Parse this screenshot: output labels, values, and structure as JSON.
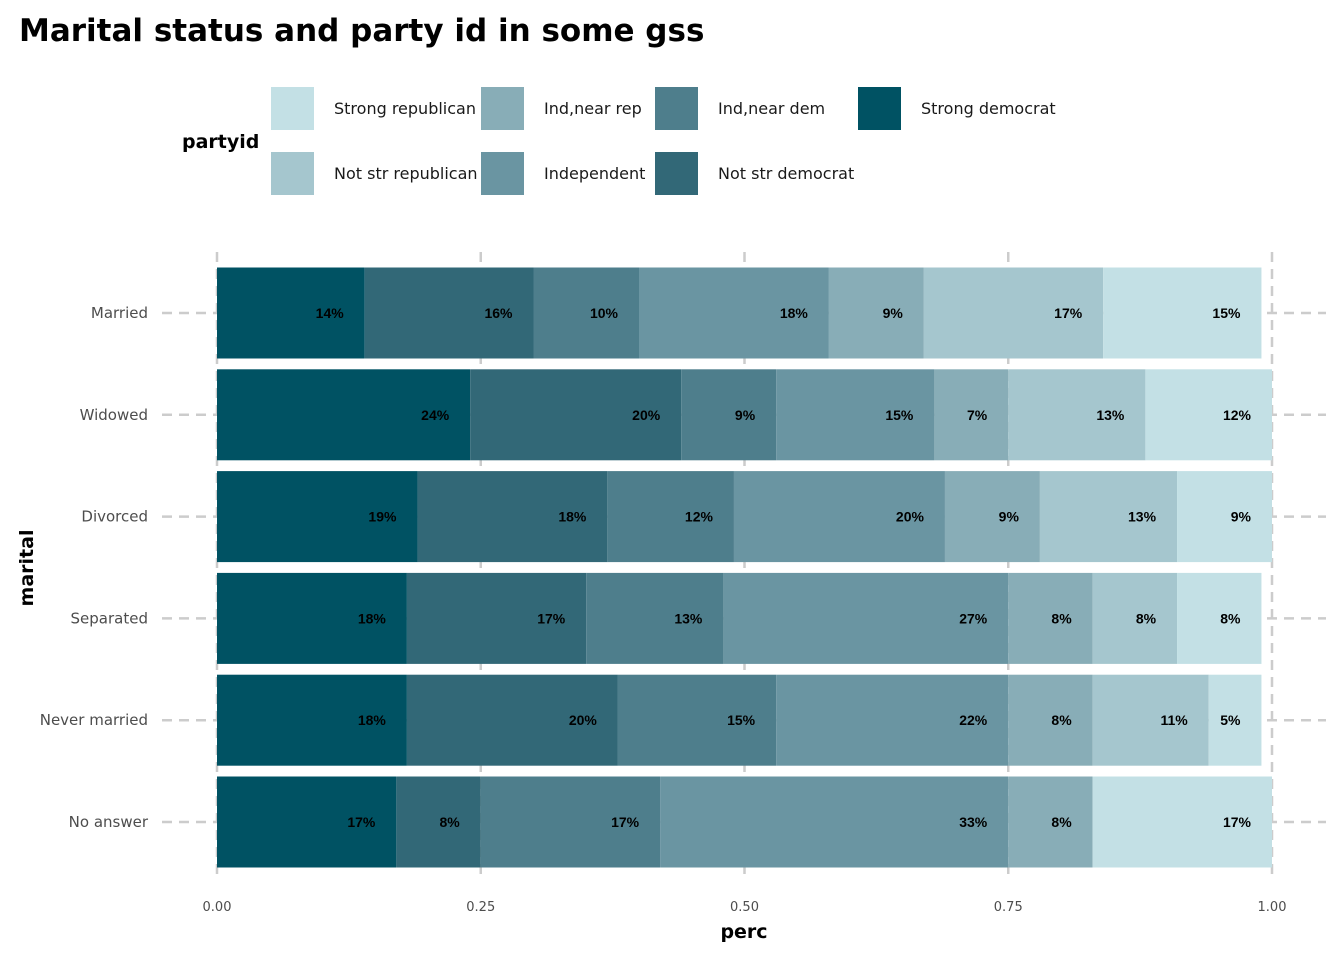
{
  "chart_data": {
    "type": "bar",
    "orientation": "horizontal",
    "stacked": true,
    "title": "Marital status and party id in some gss",
    "xlabel": "perc",
    "ylabel": "marital",
    "xlim": [
      0,
      1
    ],
    "x_ticks": [
      "0.00",
      "0.25",
      "0.50",
      "0.75",
      "1.00"
    ],
    "grid": true,
    "legend": {
      "title": "partyid",
      "placement": "top",
      "entries": [
        {
          "name": "Strong republican",
          "color": "#c3e0e5"
        },
        {
          "name": "Not str republican",
          "color": "#a5c6ce"
        },
        {
          "name": "Ind,near rep",
          "color": "#88adb7"
        },
        {
          "name": "Independent",
          "color": "#6a95a2"
        },
        {
          "name": "Ind,near dem",
          "color": "#4e7e8c"
        },
        {
          "name": "Not str democrat",
          "color": "#326877"
        },
        {
          "name": "Strong democrat",
          "color": "#005263"
        }
      ]
    },
    "categories": [
      "Married",
      "Widowed",
      "Divorced",
      "Separated",
      "Never married",
      "No answer"
    ],
    "series": [
      {
        "name": "Strong democrat",
        "color": "#005263",
        "values": [
          0.14,
          0.24,
          0.19,
          0.18,
          0.18,
          0.17
        ],
        "labels": [
          "14%",
          "24%",
          "19%",
          "18%",
          "18%",
          "17%"
        ]
      },
      {
        "name": "Not str democrat",
        "color": "#326877",
        "values": [
          0.16,
          0.2,
          0.18,
          0.17,
          0.2,
          0.08
        ],
        "labels": [
          "16%",
          "20%",
          "18%",
          "17%",
          "20%",
          "8%"
        ]
      },
      {
        "name": "Ind,near dem",
        "color": "#4e7e8c",
        "values": [
          0.1,
          0.09,
          0.12,
          0.13,
          0.15,
          0.17
        ],
        "labels": [
          "10%",
          "9%",
          "12%",
          "13%",
          "15%",
          "17%"
        ]
      },
      {
        "name": "Independent",
        "color": "#6a95a2",
        "values": [
          0.18,
          0.15,
          0.2,
          0.27,
          0.22,
          0.33
        ],
        "labels": [
          "18%",
          "15%",
          "20%",
          "27%",
          "22%",
          "33%"
        ]
      },
      {
        "name": "Ind,near rep",
        "color": "#88adb7",
        "values": [
          0.09,
          0.07,
          0.09,
          0.08,
          0.08,
          0.08
        ],
        "labels": [
          "9%",
          "7%",
          "9%",
          "8%",
          "8%",
          "8%"
        ]
      },
      {
        "name": "Not str republican",
        "color": "#a5c6ce",
        "values": [
          0.17,
          0.13,
          0.13,
          0.08,
          0.11,
          0.0
        ],
        "labels": [
          "17%",
          "13%",
          "13%",
          "8%",
          "11%",
          ""
        ]
      },
      {
        "name": "Strong republican",
        "color": "#c3e0e5",
        "values": [
          0.15,
          0.12,
          0.09,
          0.08,
          0.05,
          0.17
        ],
        "labels": [
          "15%",
          "12%",
          "9%",
          "8%",
          "5%",
          "17%"
        ]
      }
    ]
  }
}
